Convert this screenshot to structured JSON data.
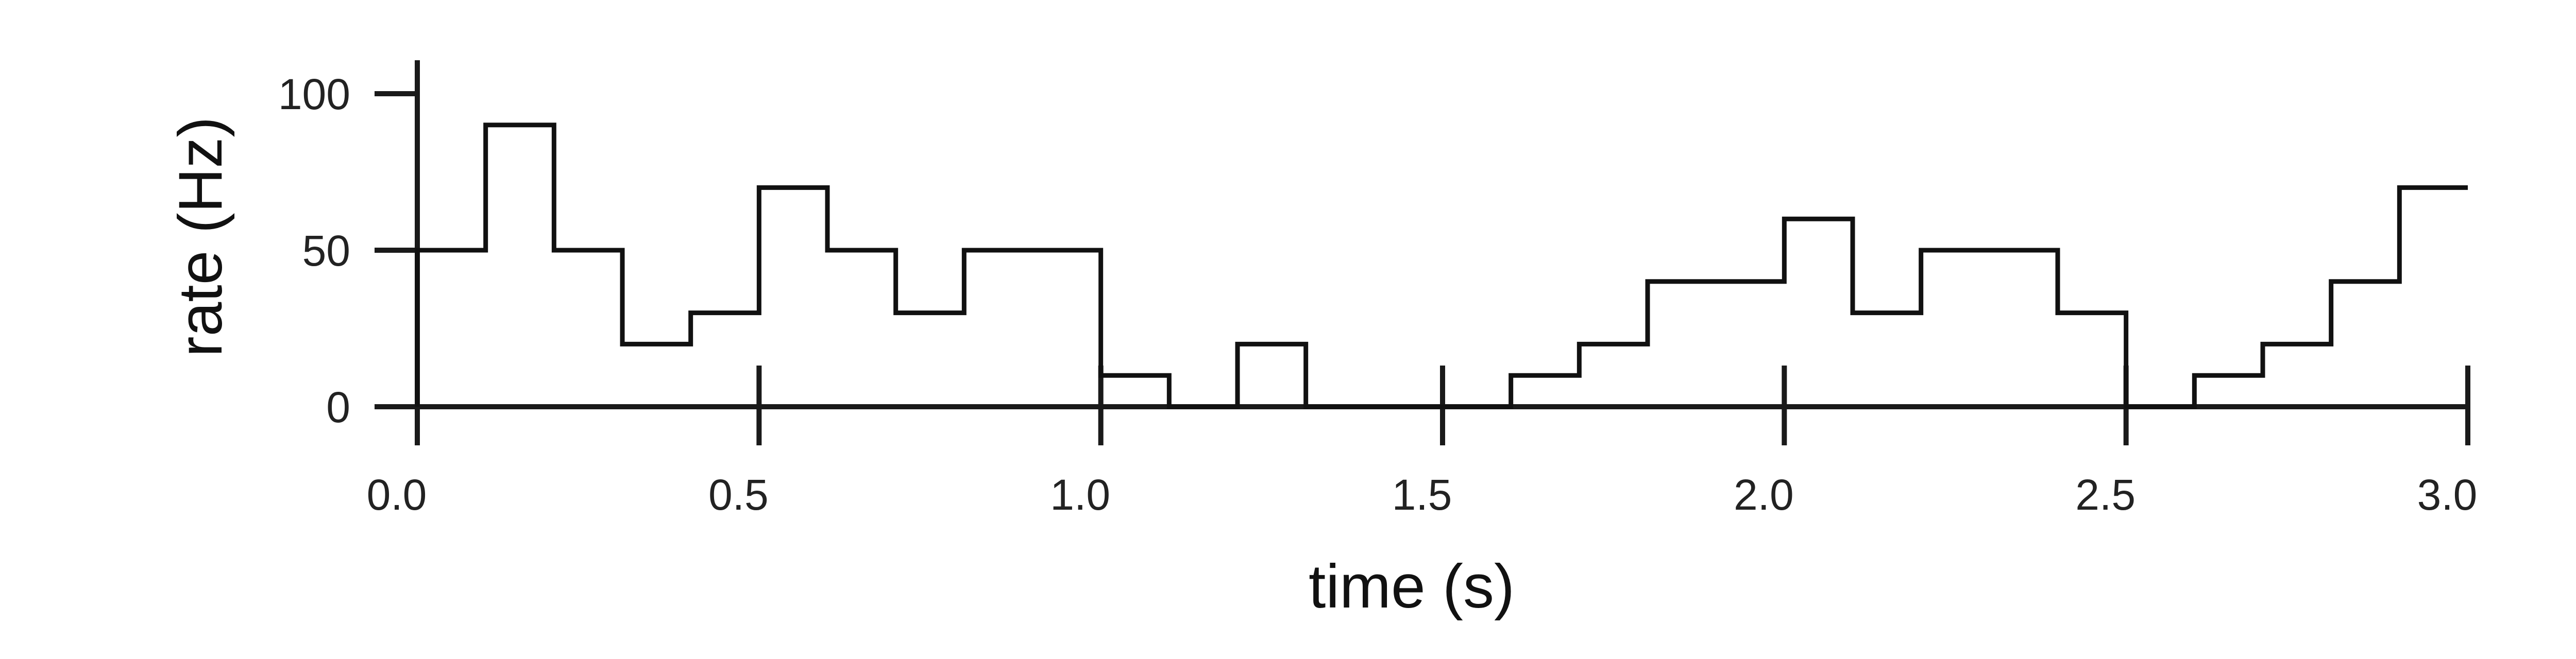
{
  "chart_data": {
    "type": "line",
    "step": true,
    "xlabel": "time (s)",
    "ylabel": "rate (Hz)",
    "xlim": [
      0.0,
      3.0
    ],
    "ylim": [
      0,
      100
    ],
    "xticks": [
      "0.0",
      "0.5",
      "1.0",
      "1.5",
      "2.0",
      "2.5",
      "3.0"
    ],
    "yticks": [
      "0",
      "50",
      "100"
    ],
    "grid": false,
    "legend": "none",
    "series": [
      {
        "bin_width": 0.1,
        "bin_start": [
          0.0,
          0.1,
          0.2,
          0.3,
          0.4,
          0.5,
          0.6,
          0.7,
          0.8,
          0.9,
          1.0,
          1.1,
          1.2,
          1.3,
          1.4,
          1.5,
          1.6,
          1.7,
          1.8,
          1.9,
          2.0,
          2.1,
          2.2,
          2.3,
          2.4,
          2.5,
          2.6,
          2.7,
          2.8,
          2.9
        ],
        "values": [
          50,
          90,
          50,
          20,
          30,
          70,
          50,
          30,
          50,
          50,
          10,
          0,
          20,
          0,
          0,
          0,
          10,
          20,
          40,
          40,
          60,
          30,
          50,
          50,
          30,
          0,
          10,
          20,
          40,
          70
        ]
      }
    ],
    "colors": {
      "line": "#111111",
      "axis": "#1a1a1a",
      "background": "#ffffff"
    }
  }
}
